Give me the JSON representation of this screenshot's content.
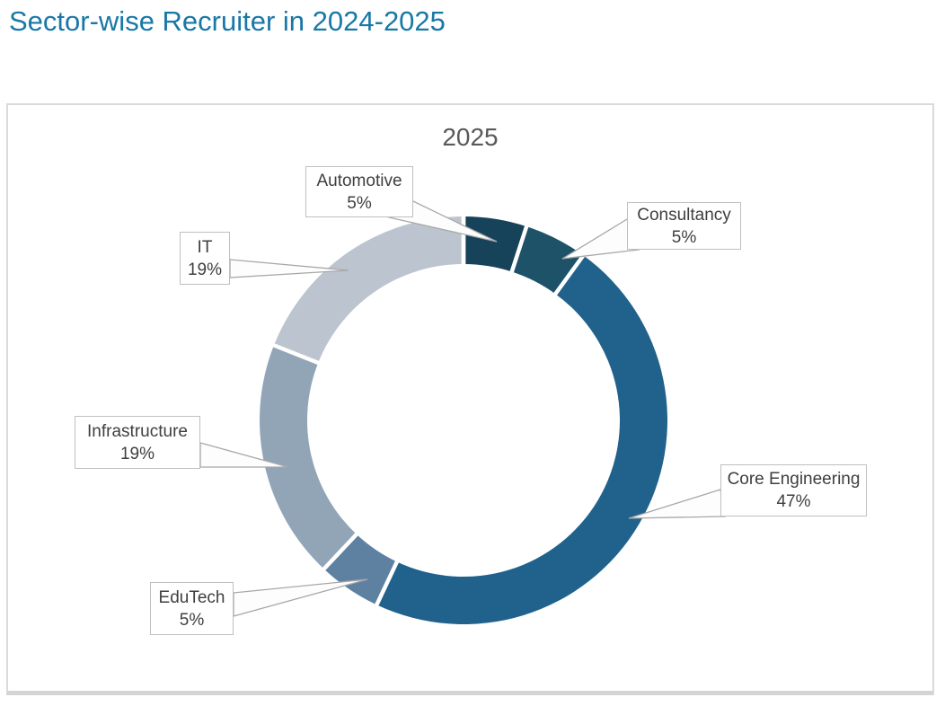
{
  "page": {
    "title": "Sector-wise Recruiter in 2024-2025"
  },
  "styles": {
    "accent_color": "#1878a6",
    "chart_title_color": "#595959",
    "label_color": "#3f3f3f",
    "panel_border_color": "#dadada",
    "callout_border_color": "#bfbfbf",
    "leader_line_color": "#a8a8a8",
    "slice_gap_color": "#ffffff"
  },
  "chart_data": {
    "type": "pie",
    "subtype": "donut",
    "title": "2025",
    "unit": "%",
    "start_angle_deg": 0,
    "direction": "clockwise",
    "hole_radius_ratio": 0.77,
    "legend": "none",
    "data_labels": "category-and-percent-callouts",
    "categories": [
      "Automotive",
      "Consultancy",
      "Core Engineering",
      "EduTech",
      "Infrastructure",
      "IT"
    ],
    "values": [
      5,
      5,
      47,
      5,
      19,
      19
    ],
    "slices": [
      {
        "label": "Automotive",
        "value": 5,
        "pct_label": "5%",
        "color": "#17435a"
      },
      {
        "label": "Consultancy",
        "value": 5,
        "pct_label": "5%",
        "color": "#1d5269"
      },
      {
        "label": "Core Engineering",
        "value": 47,
        "pct_label": "47%",
        "color": "#20628c"
      },
      {
        "label": "EduTech",
        "value": 5,
        "pct_label": "5%",
        "color": "#5e81a1"
      },
      {
        "label": "Infrastructure",
        "value": 19,
        "pct_label": "19%",
        "color": "#92a5b7"
      },
      {
        "label": "IT",
        "value": 19,
        "pct_label": "19%",
        "color": "#bcc5cf"
      }
    ]
  }
}
